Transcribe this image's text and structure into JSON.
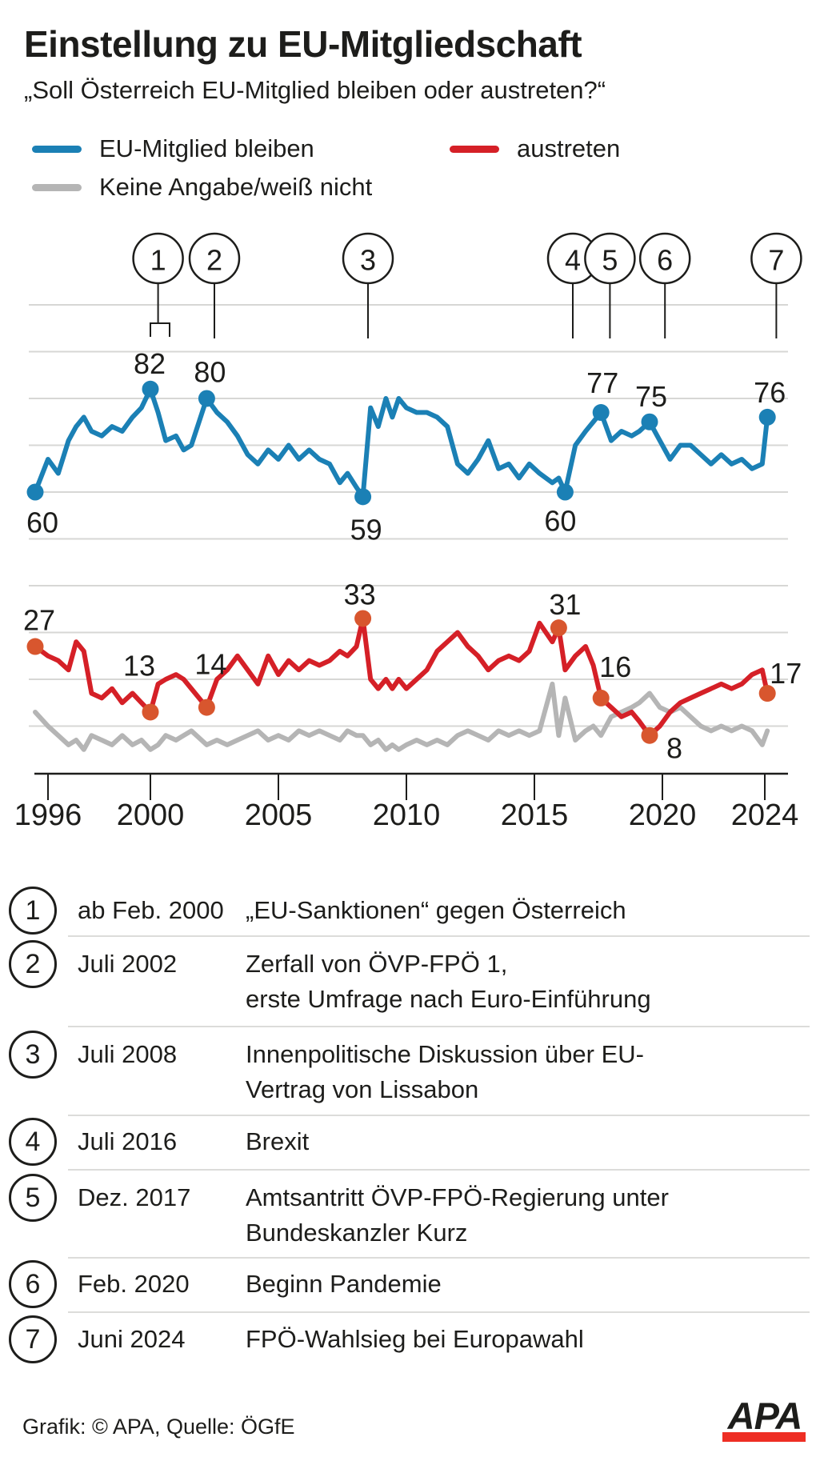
{
  "title": "Einstellung zu EU-Mitgliedschaft",
  "subtitle": "„Soll Österreich EU-Mitglied bleiben oder austreten?“",
  "legend": {
    "items": [
      {
        "label": "EU-Mitglied bleiben",
        "color": "#1b80b5"
      },
      {
        "label": "austreten",
        "color": "#d52027"
      },
      {
        "label": "Keine Angabe/weiß nicht",
        "color": "#b5b5b5"
      }
    ]
  },
  "chart_data": {
    "type": "line",
    "title": "Einstellung zu EU-Mitgliedschaft",
    "xlabel": "",
    "ylabel": "",
    "xlim": [
      1995,
      2024.6
    ],
    "ylim": [
      0,
      100
    ],
    "grid_step": 10,
    "grid_on": true,
    "x_ticks": [
      1996,
      2000,
      2005,
      2010,
      2015,
      2020,
      2024
    ],
    "x_tick_labels": [
      "1996",
      "2000",
      "2005",
      "2010",
      "2015",
      "2020",
      "2024"
    ],
    "x": [
      1995.5,
      1996.0,
      1996.4,
      1996.8,
      1997.1,
      1997.4,
      1997.7,
      1998.1,
      1998.5,
      1998.9,
      1999.3,
      1999.65,
      2000.0,
      2000.3,
      2000.6,
      2001.0,
      2001.3,
      2001.6,
      2002.2,
      2002.6,
      2003.0,
      2003.4,
      2003.8,
      2004.2,
      2004.6,
      2005.0,
      2005.4,
      2005.8,
      2006.2,
      2006.6,
      2007.0,
      2007.4,
      2007.7,
      2008.05,
      2008.3,
      2008.6,
      2008.9,
      2009.2,
      2009.45,
      2009.7,
      2010.0,
      2010.4,
      2010.8,
      2011.2,
      2011.6,
      2012.0,
      2012.4,
      2012.8,
      2013.2,
      2013.6,
      2014.0,
      2014.4,
      2014.8,
      2015.2,
      2015.7,
      2015.95,
      2016.2,
      2016.6,
      2017.0,
      2017.3,
      2017.6,
      2018.0,
      2018.4,
      2018.8,
      2019.1,
      2019.5,
      2019.9,
      2020.3,
      2020.7,
      2021.1,
      2021.5,
      2021.9,
      2022.3,
      2022.7,
      2023.1,
      2023.5,
      2023.9,
      2024.1
    ],
    "series": [
      {
        "name": "EU-Mitglied bleiben",
        "color": "#1b80b5",
        "marker_color": "#1b80b5",
        "values": [
          60,
          67,
          64,
          71,
          74,
          76,
          73,
          72,
          74,
          73,
          76,
          78,
          82,
          77,
          71,
          72,
          69,
          70,
          80,
          77,
          75,
          72,
          68,
          66,
          69,
          67,
          70,
          67,
          69,
          67,
          66,
          62,
          64,
          61,
          59,
          78,
          74,
          80,
          76,
          80,
          78,
          77,
          77,
          76,
          74,
          66,
          64,
          67,
          71,
          65,
          66,
          63,
          66,
          64,
          62,
          63,
          60,
          70,
          73,
          75,
          77,
          71,
          73,
          72,
          73,
          75,
          71,
          67,
          70,
          70,
          68,
          66,
          68,
          66,
          67,
          65,
          66,
          76
        ],
        "markers": [
          {
            "year": 1995.5,
            "value": 60,
            "label": "60",
            "dx": 9,
            "dy": 38
          },
          {
            "year": 2000.0,
            "value": 82,
            "label": "82",
            "dx": -1,
            "dy": -32
          },
          {
            "year": 2002.2,
            "value": 80,
            "label": "80",
            "dx": 4,
            "dy": -33
          },
          {
            "year": 2008.3,
            "value": 59,
            "label": "59",
            "dx": 4,
            "dy": 41
          },
          {
            "year": 2016.2,
            "value": 60,
            "label": "60",
            "dx": -6,
            "dy": 36
          },
          {
            "year": 2017.6,
            "value": 77,
            "label": "77",
            "dx": 2,
            "dy": -37
          },
          {
            "year": 2019.5,
            "value": 75,
            "label": "75",
            "dx": 2,
            "dy": -32
          },
          {
            "year": 2024.1,
            "value": 76,
            "label": "76",
            "dx": 3,
            "dy": -31
          }
        ]
      },
      {
        "name": "austreten",
        "color": "#d52027",
        "marker_color": "#d8562e",
        "values": [
          27,
          25,
          24,
          22,
          28,
          26,
          17,
          16,
          18,
          15,
          17,
          15,
          13,
          19,
          20,
          21,
          20,
          18,
          14,
          20,
          22,
          25,
          22,
          19,
          25,
          21,
          24,
          22,
          24,
          23,
          24,
          26,
          25,
          27,
          33,
          20,
          18,
          20,
          18,
          20,
          18,
          20,
          22,
          26,
          28,
          30,
          27,
          25,
          22,
          24,
          25,
          24,
          26,
          32,
          28,
          31,
          22,
          25,
          27,
          23,
          16,
          14,
          12,
          13,
          11,
          8,
          10,
          13,
          15,
          16,
          17,
          18,
          19,
          18,
          19,
          21,
          22,
          17
        ],
        "markers": [
          {
            "year": 1995.5,
            "value": 27,
            "label": "27",
            "dx": 5,
            "dy": -33
          },
          {
            "year": 2000.0,
            "value": 13,
            "label": "13",
            "dx": -14,
            "dy": -58
          },
          {
            "year": 2002.2,
            "value": 14,
            "label": "14",
            "dx": 5,
            "dy": -54
          },
          {
            "year": 2008.3,
            "value": 33,
            "label": "33",
            "dx": -4,
            "dy": -30
          },
          {
            "year": 2015.95,
            "value": 31,
            "label": "31",
            "dx": 8,
            "dy": -29
          },
          {
            "year": 2017.6,
            "value": 16,
            "label": "16",
            "dx": 18,
            "dy": -39
          },
          {
            "year": 2019.5,
            "value": 8,
            "label": "8",
            "dx": 31,
            "dy": 16
          },
          {
            "year": 2024.1,
            "value": 17,
            "label": "17",
            "dx": 23,
            "dy": -25
          }
        ]
      },
      {
        "name": "Keine Angabe/weiß nicht",
        "color": "#b5b5b5",
        "marker_color": "#b5b5b5",
        "values": [
          13,
          10,
          8,
          6,
          7,
          5,
          8,
          7,
          6,
          8,
          6,
          7,
          5,
          6,
          8,
          7,
          8,
          9,
          6,
          7,
          6,
          7,
          8,
          9,
          7,
          8,
          7,
          9,
          8,
          9,
          8,
          7,
          9,
          8,
          8,
          6,
          7,
          5,
          6,
          5,
          6,
          7,
          6,
          7,
          6,
          8,
          9,
          8,
          7,
          9,
          8,
          9,
          8,
          9,
          19,
          8,
          16,
          7,
          9,
          10,
          8,
          12,
          13,
          14,
          15,
          17,
          14,
          13,
          14,
          12,
          10,
          9,
          10,
          9,
          10,
          9,
          6,
          9
        ],
        "markers": []
      }
    ],
    "events": [
      {
        "n": "1",
        "year": 2000.3,
        "bracket": {
          "from": 2000.0,
          "to": 2000.75
        }
      },
      {
        "n": "2",
        "year": 2002.5
      },
      {
        "n": "3",
        "year": 2008.5
      },
      {
        "n": "4",
        "year": 2016.5
      },
      {
        "n": "5",
        "year": 2017.95
      },
      {
        "n": "6",
        "year": 2020.1
      },
      {
        "n": "7",
        "year": 2024.45
      }
    ]
  },
  "events_table": {
    "rows": [
      {
        "n": "1",
        "date": "ab Feb. 2000",
        "lines": [
          "„EU-Sanktionen“ gegen Österreich"
        ]
      },
      {
        "n": "2",
        "date": "Juli 2002",
        "lines": [
          "Zerfall von ÖVP-FPÖ 1,",
          "erste Umfrage nach Euro-Einführung"
        ]
      },
      {
        "n": "3",
        "date": "Juli 2008",
        "lines": [
          "Innenpolitische Diskussion über EU-",
          "Vertrag von Lissabon"
        ]
      },
      {
        "n": "4",
        "date": "Juli 2016",
        "lines": [
          "Brexit"
        ]
      },
      {
        "n": "5",
        "date": "Dez. 2017",
        "lines": [
          "Amtsantritt ÖVP-FPÖ-Regierung unter",
          "Bundeskanzler Kurz"
        ]
      },
      {
        "n": "6",
        "date": "Feb. 2020",
        "lines": [
          "Beginn Pandemie"
        ]
      },
      {
        "n": "7",
        "date": "Juni 2024",
        "lines": [
          "FPÖ-Wahlsieg bei Europawahl"
        ]
      }
    ]
  },
  "footer": {
    "credit": "Grafik: © APA, Quelle: ÖGfE",
    "logo_text": "APA",
    "logo_color": "#ee2e24"
  },
  "colors": {
    "text": "#1d1d1b",
    "gridline": "#d7d7d5",
    "axis": "#1d1d1b",
    "separator": "#dcdcda"
  }
}
